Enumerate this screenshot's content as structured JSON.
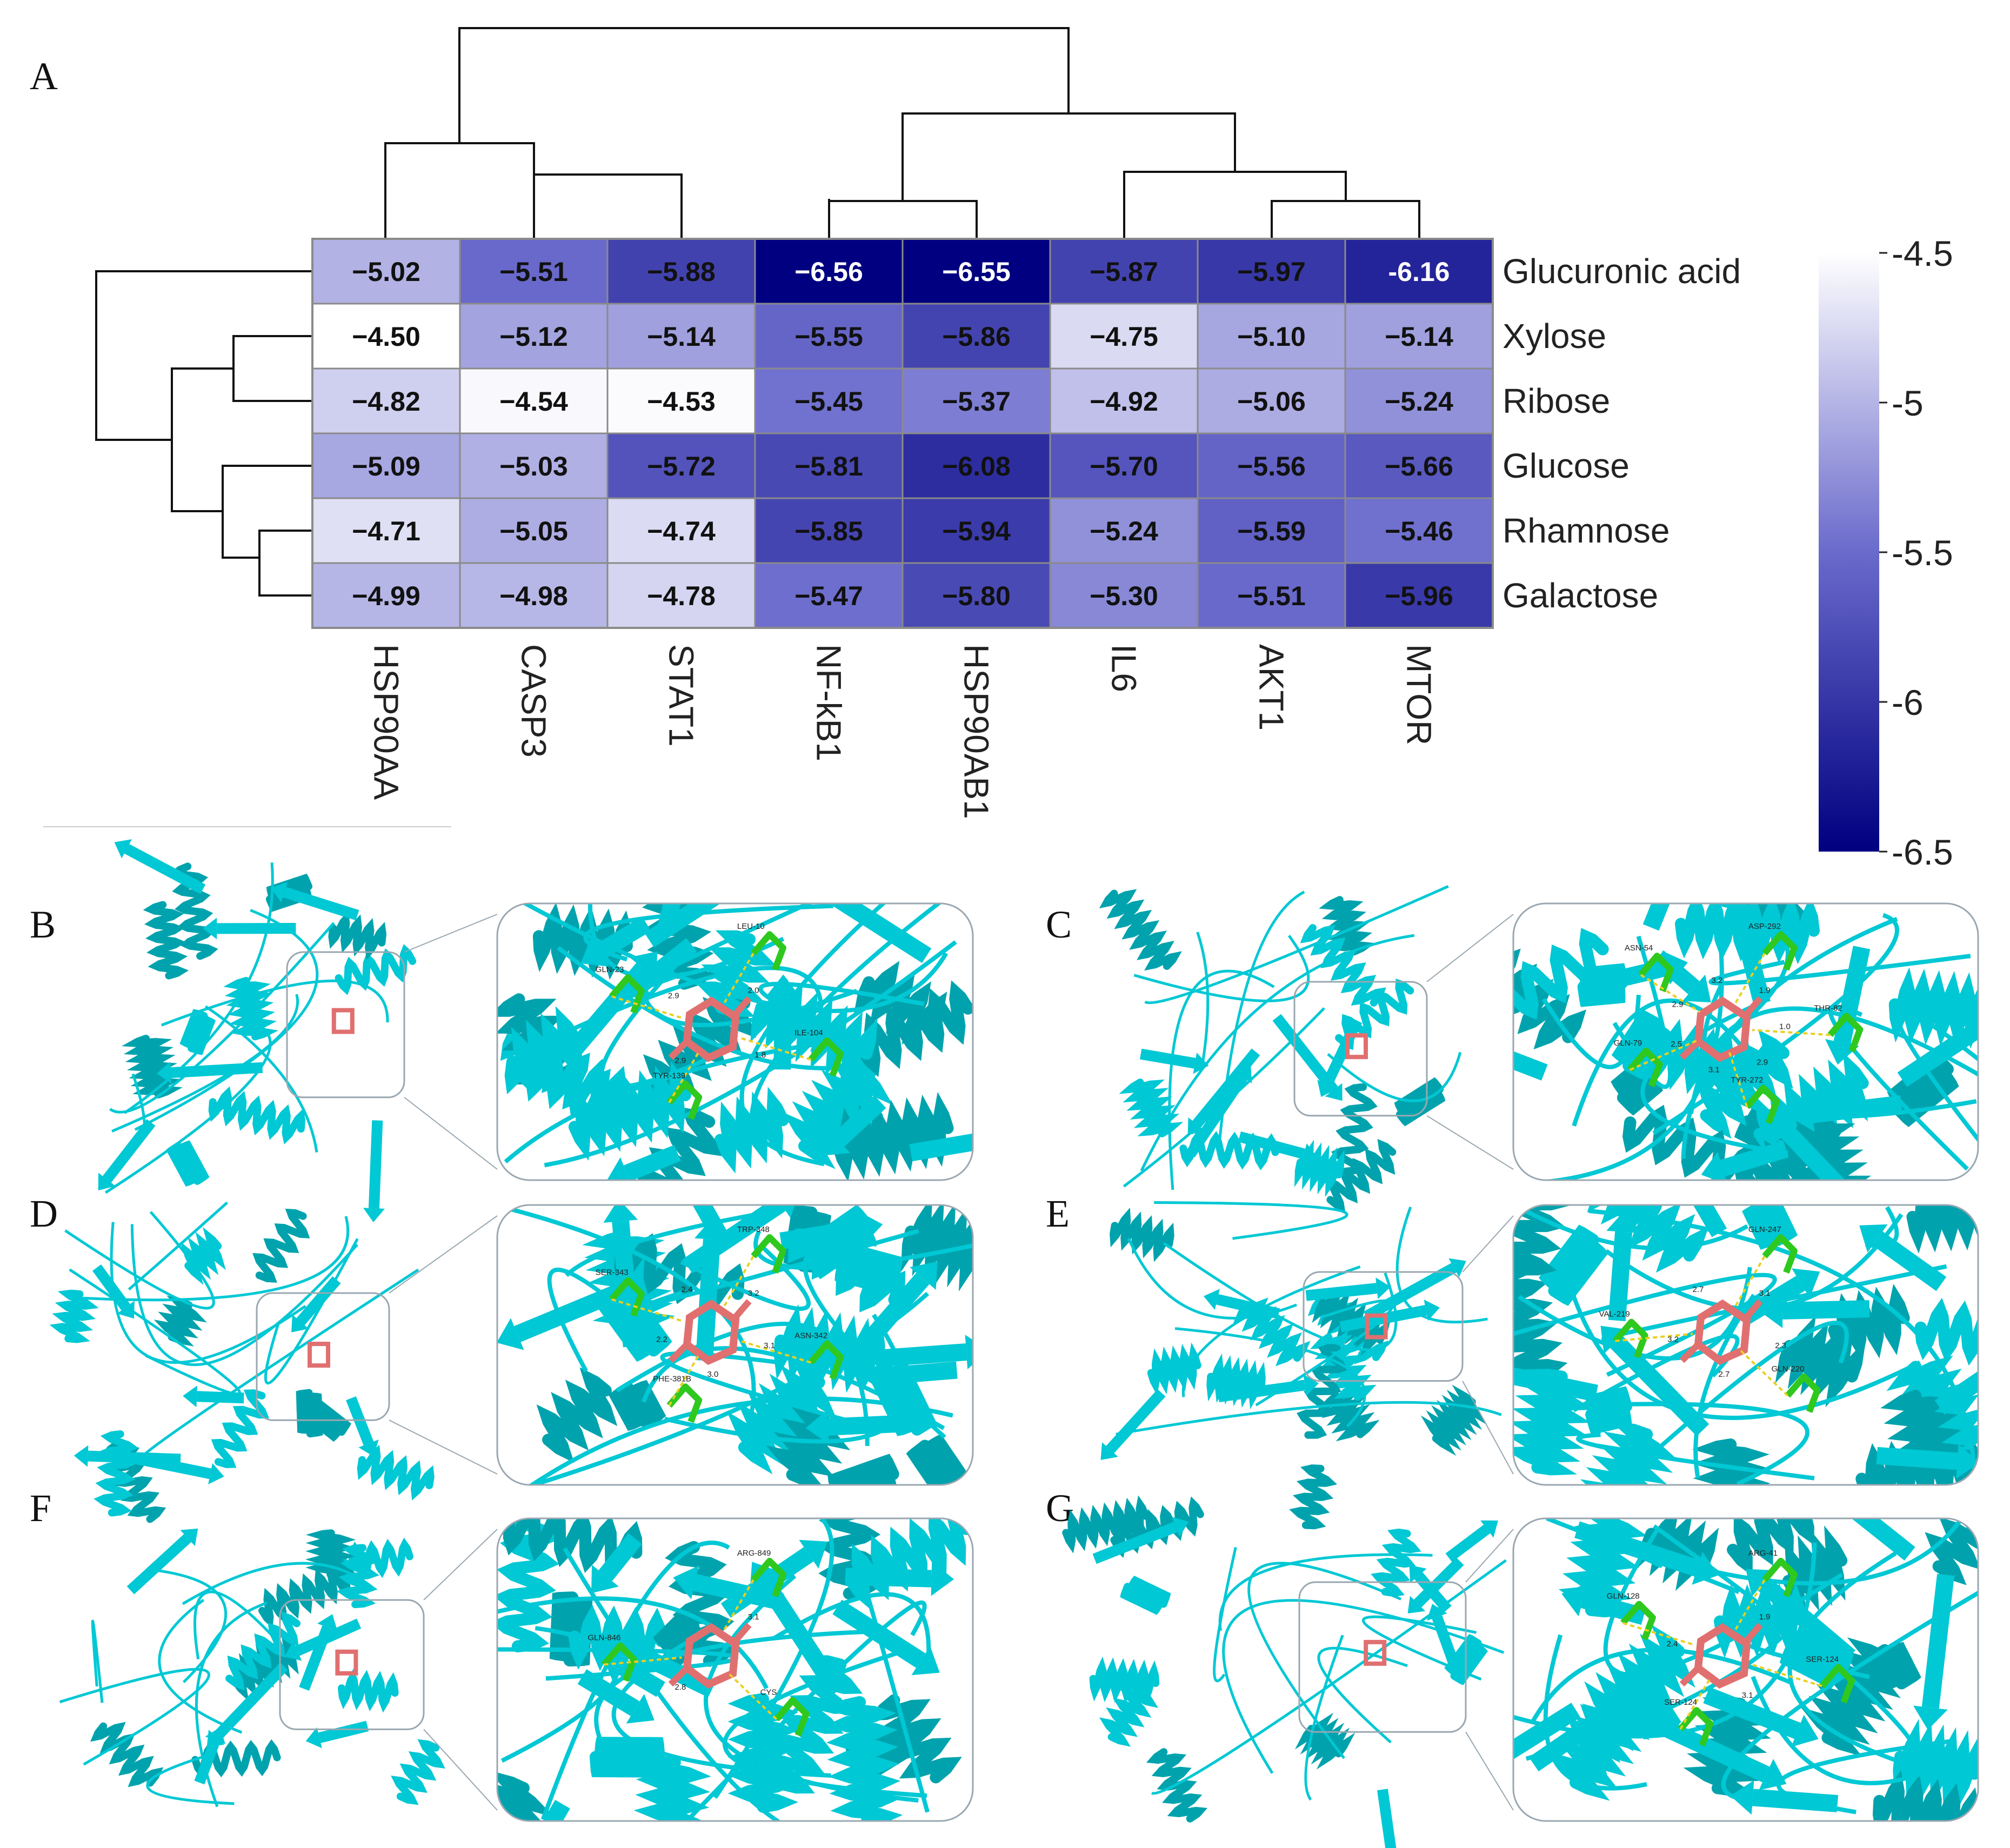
{
  "chart_data": {
    "type": "heatmap",
    "panel_label": "A",
    "rows": [
      "Glucuronic acid",
      "Xylose",
      "Ribose",
      "Glucose",
      "Rhamnose",
      "Galactose"
    ],
    "columns": [
      "HSP90AA",
      "CASP3",
      "STAT1",
      "NF-kB1",
      "HSP90AB1",
      "IL6",
      "AKT1",
      "MTOR"
    ],
    "value_labels": [
      [
        "−5.02",
        "−5.51",
        "−5.88",
        "−6.56",
        "−6.55",
        "−5.87",
        "−5.97",
        "-6.16"
      ],
      [
        "−4.50",
        "−5.12",
        "−5.14",
        "−5.55",
        "−5.86",
        "−4.75",
        "−5.10",
        "−5.14"
      ],
      [
        "−4.82",
        "−4.54",
        "−4.53",
        "−5.45",
        "−5.37",
        "−4.92",
        "−5.06",
        "−5.24"
      ],
      [
        "−5.09",
        "−5.03",
        "−5.72",
        "−5.81",
        "−6.08",
        "−5.70",
        "−5.56",
        "−5.66"
      ],
      [
        "−4.71",
        "−5.05",
        "−4.74",
        "−5.85",
        "−5.94",
        "−5.24",
        "−5.59",
        "−5.46"
      ],
      [
        "−4.99",
        "−4.98",
        "−4.78",
        "−5.47",
        "−5.80",
        "−5.30",
        "−5.51",
        "−5.96"
      ]
    ],
    "values": [
      [
        -5.02,
        -5.51,
        -5.88,
        -6.56,
        -6.55,
        -5.87,
        -5.97,
        -6.16
      ],
      [
        -4.5,
        -5.12,
        -5.14,
        -5.55,
        -5.86,
        -4.75,
        -5.1,
        -5.14
      ],
      [
        -4.82,
        -4.54,
        -4.53,
        -5.45,
        -5.37,
        -4.92,
        -5.06,
        -5.24
      ],
      [
        -5.09,
        -5.03,
        -5.72,
        -5.81,
        -6.08,
        -5.7,
        -5.56,
        -5.66
      ],
      [
        -4.71,
        -5.05,
        -4.74,
        -5.85,
        -5.94,
        -5.24,
        -5.59,
        -5.46
      ],
      [
        -4.99,
        -4.98,
        -4.78,
        -5.47,
        -5.8,
        -5.3,
        -5.51,
        -5.96
      ]
    ],
    "colorbar": {
      "min": -6.5,
      "max": -4.5,
      "ticks": [
        -4.5,
        -5,
        -5.5,
        -6,
        -6.5
      ],
      "tick_labels": [
        "-4.5",
        "-5",
        "-5.5",
        "-6",
        "-6.5"
      ],
      "color_low": "#000080",
      "color_high": "#ffffff",
      "color_mid": "#6a6acc"
    },
    "column_dendrogram": "((HSP90AA,(CASP3,STAT1)),((NF-kB1,HSP90AB1),(IL6,(AKT1,MTOR))))",
    "row_dendrogram": "(Glucuronic acid,((Xylose,Ribose),(Glucose,(Rhamnose,Galactose))))"
  },
  "docking_panels": [
    {
      "label": "B",
      "residues": [
        "LEU-10",
        "ILE-104",
        "TYR-139",
        "GLN-23"
      ],
      "distances": [
        "2.0",
        "1.8",
        "2.9",
        "2.9"
      ]
    },
    {
      "label": "C",
      "residues": [
        "ASP-292",
        "THR-82",
        "TYR-272",
        "GLN-79",
        "ASN-54"
      ],
      "distances": [
        "1.9",
        "1.0",
        "2.9",
        "3.1",
        "2.5",
        "2.9",
        "3.2"
      ]
    },
    {
      "label": "D",
      "residues": [
        "TRP-348",
        "ASN-342",
        "PHE-381B",
        "SER-343"
      ],
      "distances": [
        "3.2",
        "3.1",
        "3.0",
        "2.2",
        "2.4"
      ]
    },
    {
      "label": "E",
      "residues": [
        "GLN-247",
        "GLN-220",
        "VAL-219"
      ],
      "distances": [
        "3.1",
        "2.3",
        "2.7",
        "3.2",
        "2.7"
      ]
    },
    {
      "label": "F",
      "residues": [
        "ARG-849",
        "CYS",
        "GLN-846"
      ],
      "distances": [
        "3.1",
        "2.8"
      ]
    },
    {
      "label": "G",
      "residues": [
        "ARG-41",
        "SER-124",
        "SER-124",
        "GLN-128"
      ],
      "distances": [
        "1.9",
        "3.1",
        "2.4"
      ]
    }
  ],
  "colors": {
    "protein": "#00c8d4",
    "protein_dark": "#00a3ad",
    "ligand": "#e07070",
    "residue": "#2fc81e",
    "hbond": "#e8d020",
    "frame": "#9aa7b0"
  }
}
